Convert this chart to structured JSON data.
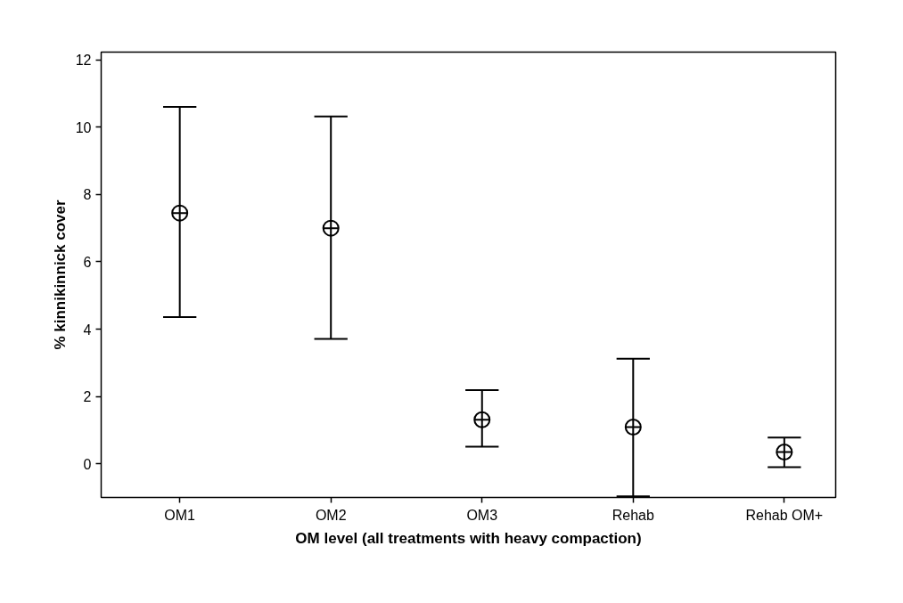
{
  "chart_data": {
    "type": "scatter",
    "xlabel": "OM level (all treatments with heavy compaction)",
    "ylabel": "% kinnikinnick cover",
    "categories": [
      "OM1",
      "OM2",
      "OM3",
      "Rehab",
      "Rehab OM+"
    ],
    "series": [
      {
        "color": "#000000",
        "values": [
          7.45,
          7.0,
          1.31,
          1.09,
          0.35
        ],
        "errors": [
          [
            4.36,
            10.6
          ],
          [
            3.71,
            10.32
          ],
          [
            0.51,
            2.19
          ],
          [
            -0.97,
            3.12
          ],
          [
            -0.1,
            0.78
          ]
        ]
      }
    ],
    "ylim": [
      -1.0,
      12.23
    ],
    "yticks": [
      0,
      2,
      4,
      6,
      8,
      10,
      12
    ],
    "marker": "circle",
    "grid": false
  }
}
